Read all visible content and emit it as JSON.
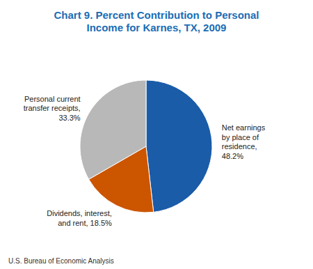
{
  "chart_data": {
    "type": "pie",
    "title": "Chart 9. Percent Contribution to Personal\nIncome for Karnes, TX, 2009",
    "values": [
      48.2,
      18.5,
      33.3
    ],
    "value_labels": [
      "Net earnings\nby place of\nresidence,\n48.2%",
      "Dividends, interest,\nand rent, 18.5%",
      "Personal current\ntransfer receipts,\n33.3%"
    ],
    "colors": [
      "#1a5ca8",
      "#cc5500",
      "#b8b8b8"
    ],
    "data_labels": true,
    "annotations": [
      "U.S. Bureau of Economic Analysis"
    ]
  }
}
